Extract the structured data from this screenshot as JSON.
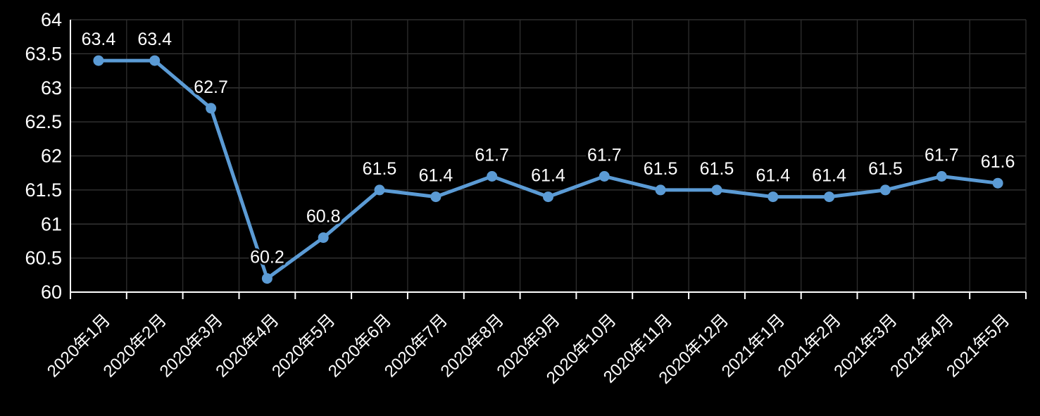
{
  "chart_data": {
    "type": "line",
    "categories": [
      "2020年1月",
      "2020年2月",
      "2020年3月",
      "2020年4月",
      "2020年5月",
      "2020年6月",
      "2020年7月",
      "2020年8月",
      "2020年9月",
      "2020年10月",
      "2020年11月",
      "2020年12月",
      "2021年1月",
      "2021年2月",
      "2021年3月",
      "2021年4月",
      "2021年5月"
    ],
    "values": [
      63.4,
      63.4,
      62.7,
      60.2,
      60.8,
      61.5,
      61.4,
      61.7,
      61.4,
      61.7,
      61.5,
      61.5,
      61.4,
      61.4,
      61.5,
      61.7,
      61.6
    ],
    "point_labels": [
      "63.4",
      "63.4",
      "62.7",
      "60.2",
      "60.8",
      "61.5",
      "61.4",
      "61.7",
      "61.4",
      "61.7",
      "61.5",
      "61.5",
      "61.4",
      "61.4",
      "61.5",
      "61.7",
      "61.6"
    ],
    "yticks": [
      "64",
      "63.5",
      "63",
      "62.5",
      "62",
      "61.5",
      "61",
      "60.5",
      "60"
    ],
    "ylim": [
      60,
      64
    ],
    "ytick_step": 0.5,
    "title": "",
    "xlabel": "",
    "ylabel": "",
    "legend": null,
    "grid": "on",
    "colors": {
      "line": "#5b9bd5",
      "marker": "#5b9bd5",
      "background": "#000000",
      "grid_horizontal": "#383838",
      "grid_vertical": "#2e2e2e",
      "axis": "#ffffff",
      "tick_text": "#ffffff",
      "data_label_text": "#ffffff",
      "data_label_halo": "#000000"
    }
  }
}
